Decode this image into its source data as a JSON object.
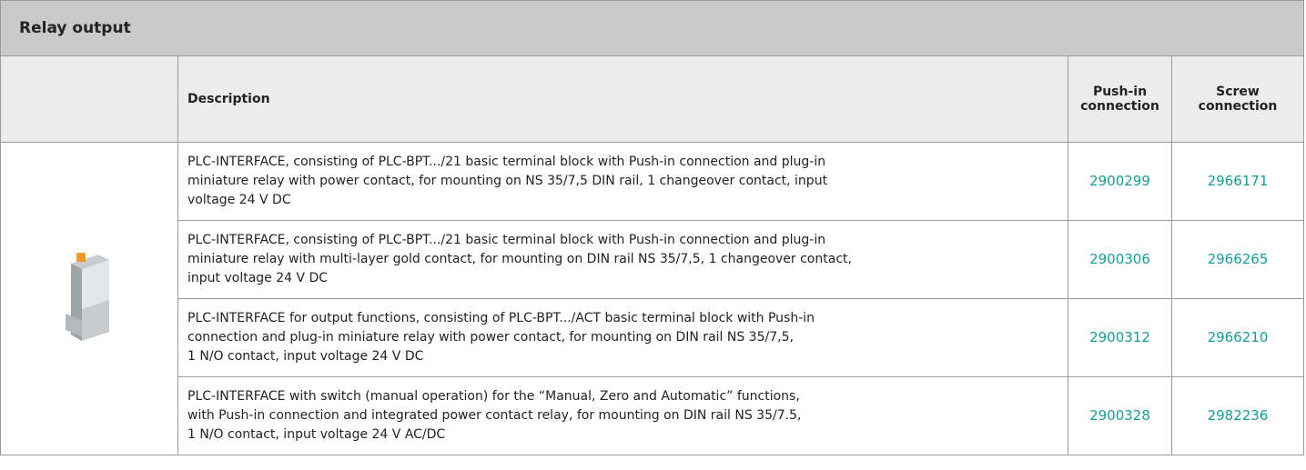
{
  "title": "Relay output",
  "header": {
    "description": "Description",
    "push_in": "Push-in connection",
    "screw": "Screw connection"
  },
  "rows": [
    {
      "description": [
        "PLC-INTERFACE, consisting of PLC-BPT.../21 basic terminal block with Push-in connection and plug-in",
        "miniature relay with power contact, for mounting on NS 35/7,5 DIN rail, 1 changeover contact, input",
        "voltage 24 V DC"
      ],
      "push_in": "2900299",
      "screw": "2966171"
    },
    {
      "description": [
        "PLC-INTERFACE, consisting of PLC-BPT.../21 basic terminal block with Push-in connection and plug-in",
        "miniature relay with multi-layer gold contact, for mounting on DIN rail NS 35/7,5, 1 changeover contact,",
        "input voltage 24 V DC"
      ],
      "push_in": "2900306",
      "screw": "2966265"
    },
    {
      "description": [
        "PLC-INTERFACE for output functions, consisting of PLC-BPT.../ACT basic terminal block with Push-in",
        "connection and plug-in miniature relay with power contact, for mounting on DIN rail NS 35/7,5,",
        "1 N/O contact, input voltage 24 V DC"
      ],
      "push_in": "2900312",
      "screw": "2966210"
    },
    {
      "description": [
        "PLC-INTERFACE with switch (manual operation) for the “Manual, Zero and Automatic” functions,",
        "with Push-in connection and integrated power contact relay, for mounting on DIN rail NS 35/7.5,",
        "1 N/O contact, input voltage 24 V AC/DC"
      ],
      "push_in": "2900328",
      "screw": "2982236"
    }
  ]
}
